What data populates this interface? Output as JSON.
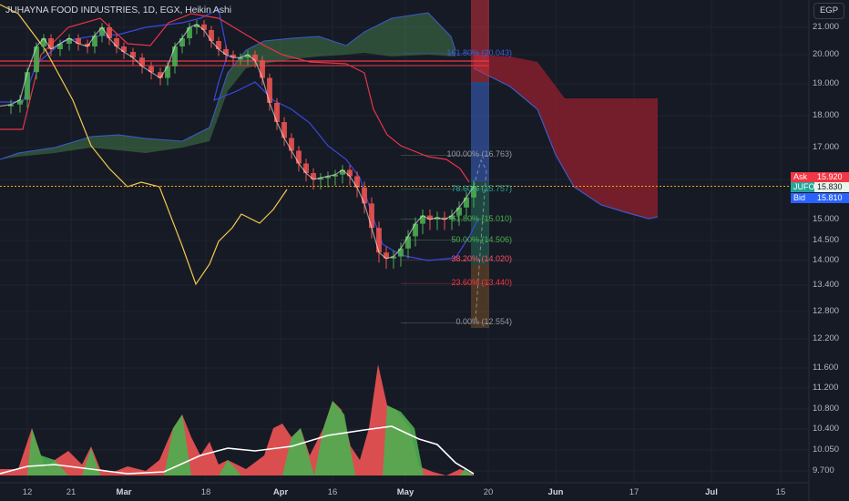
{
  "header": {
    "title": "JUHAYNA FOOD INDUSTRIES, 1D, EGX, Heikin Ashi"
  },
  "axis": {
    "currency": "EGP",
    "price_ticks": [
      "21.000",
      "20.000",
      "19.000",
      "18.000",
      "17.000",
      "16.000",
      "15.000",
      "14.500",
      "14.000",
      "13.400",
      "12.800",
      "12.200",
      "11.600",
      "11.200",
      "10.800",
      "10.400",
      "10.050",
      "9.700"
    ],
    "date_ticks": [
      {
        "label": "12",
        "bold": false
      },
      {
        "label": "21",
        "bold": false
      },
      {
        "label": "Mar",
        "bold": true
      },
      {
        "label": "18",
        "bold": false
      },
      {
        "label": "Apr",
        "bold": true
      },
      {
        "label": "16",
        "bold": false
      },
      {
        "label": "May",
        "bold": true
      },
      {
        "label": "20",
        "bold": false
      },
      {
        "label": "Jun",
        "bold": true
      },
      {
        "label": "17",
        "bold": false
      },
      {
        "label": "Jul",
        "bold": true
      },
      {
        "label": "15",
        "bold": false
      }
    ]
  },
  "quote": {
    "ask_label": "Ask",
    "ask": "15.920",
    "symbol": "JUFO",
    "last": "15.830",
    "bid_label": "Bid",
    "bid": "15.810"
  },
  "fib_levels": [
    {
      "label": "161.80% (20.043)",
      "price": 20.043,
      "color": "#3d5fd8"
    },
    {
      "label": "100.00% (16.763)",
      "price": 16.763,
      "color": "#9598a1"
    },
    {
      "label": "78.60% (15.757)",
      "price": 15.757,
      "color": "#26a69a"
    },
    {
      "label": "61.80% (15.010)",
      "price": 15.01,
      "color": "#4caf50"
    },
    {
      "label": "50.00% (14.506)",
      "price": 14.506,
      "color": "#4caf50"
    },
    {
      "label": "38.20% (14.020)",
      "price": 14.02,
      "color": "#f7525f"
    },
    {
      "label": "23.60% (13.440)",
      "price": 13.44,
      "color": "#f23645"
    },
    {
      "label": "0.00% (12.554)",
      "price": 12.554,
      "color": "#9598a1"
    }
  ],
  "chart_data": {
    "type": "candlestick",
    "symbol": "JUFO",
    "exchange": "EGX",
    "interval": "1D",
    "style": "Heikin Ashi",
    "currency": "EGP",
    "title": "JUHAYNA FOOD INDUSTRIES, 1D, EGX, Heikin Ashi",
    "last_price": 15.83,
    "ask": 15.92,
    "bid": 15.81,
    "price_axis_ticks": [
      21.0,
      20.0,
      19.0,
      18.0,
      17.0,
      16.0,
      15.0,
      14.5,
      14.0,
      13.4,
      12.8,
      12.2,
      11.6,
      11.2,
      10.8,
      10.4,
      10.05,
      9.7
    ],
    "date_axis_ticks": [
      "12",
      "21",
      "Mar",
      "18",
      "Apr",
      "16",
      "May",
      "20",
      "Jun",
      "17",
      "Jul",
      "15"
    ],
    "close_approx": [
      {
        "date": "Feb 12",
        "close": 18.3
      },
      {
        "date": "Feb 16",
        "close": 18.6
      },
      {
        "date": "Feb 21",
        "close": 20.3
      },
      {
        "date": "Feb 26",
        "close": 20.4
      },
      {
        "date": "Mar 1",
        "close": 20.1
      },
      {
        "date": "Mar 6",
        "close": 19.6
      },
      {
        "date": "Mar 11",
        "close": 19.5
      },
      {
        "date": "Mar 15",
        "close": 20.8
      },
      {
        "date": "Mar 18",
        "close": 21.0
      },
      {
        "date": "Mar 22",
        "close": 20.2
      },
      {
        "date": "Mar 27",
        "close": 19.9
      },
      {
        "date": "Apr 1",
        "close": 18.2
      },
      {
        "date": "Apr 5",
        "close": 17.0
      },
      {
        "date": "Apr 10",
        "close": 16.2
      },
      {
        "date": "Apr 16",
        "close": 16.1
      },
      {
        "date": "Apr 20",
        "close": 15.4
      },
      {
        "date": "Apr 24",
        "close": 14.2
      },
      {
        "date": "Apr 29",
        "close": 14.4
      },
      {
        "date": "May 3",
        "close": 15.0
      },
      {
        "date": "May 8",
        "close": 15.1
      },
      {
        "date": "May 13",
        "close": 15.3
      },
      {
        "date": "May 17",
        "close": 15.83
      }
    ],
    "fibonacci_levels": [
      {
        "ratio": 1.618,
        "price": 20.043
      },
      {
        "ratio": 1.0,
        "price": 16.763
      },
      {
        "ratio": 0.786,
        "price": 15.757
      },
      {
        "ratio": 0.618,
        "price": 15.01
      },
      {
        "ratio": 0.5,
        "price": 14.506
      },
      {
        "ratio": 0.382,
        "price": 14.02
      },
      {
        "ratio": 0.236,
        "price": 13.44
      },
      {
        "ratio": 0.0,
        "price": 12.554
      }
    ],
    "cloud_projection": {
      "color": "red",
      "from": "May 20",
      "to": "Jun 17",
      "upper": [
        20.0,
        19.6,
        18.5,
        18.5
      ],
      "lower": [
        19.2,
        17.0,
        15.3,
        15.0
      ]
    },
    "volume_panel": {
      "type": "area",
      "series": [
        "up (green)",
        "down (red)",
        "moving average (white)"
      ]
    },
    "grid": true
  }
}
